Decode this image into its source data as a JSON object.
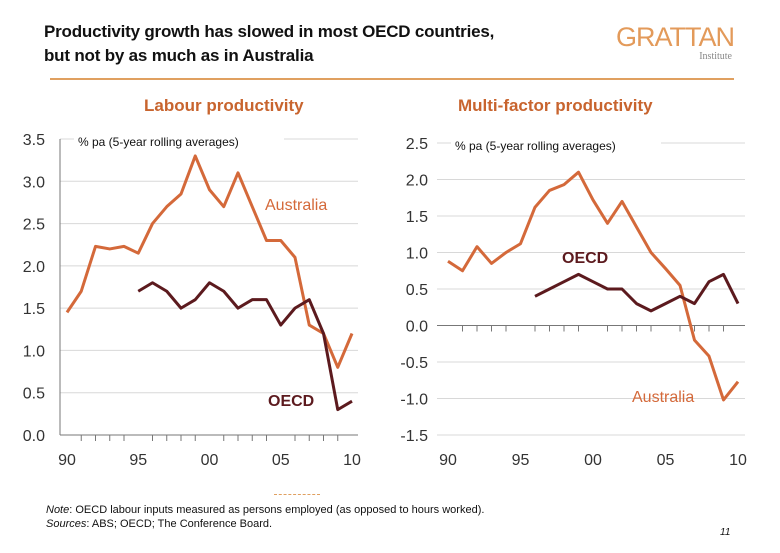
{
  "header": {
    "title_line1": "Productivity growth has slowed in most OECD countries,",
    "title_line2": "but not by as much as in Australia",
    "logo_text": "GRATTAN",
    "logo_subtext": "Institute"
  },
  "footer": {
    "note_label": "Note",
    "note_text": ": OECD labour inputs measured as persons employed (as opposed to hours worked).",
    "sources_label": "Sources",
    "sources_text": ": ABS; OECD; The Conference Board.",
    "page_number": "11"
  },
  "colors": {
    "australia": "#d4693a",
    "oecd": "#5c1a1e",
    "title": "#c8642e",
    "rule": "#e0a060"
  },
  "chart_data": [
    {
      "type": "line",
      "title": "Labour productivity",
      "ylabel": "% pa (5-year rolling averages)",
      "ylim": [
        0,
        3.5
      ],
      "yticks": [
        "0.0",
        "0.5",
        "1.0",
        "1.5",
        "2.0",
        "2.5",
        "3.0",
        "3.5"
      ],
      "xlim": [
        1990,
        2010
      ],
      "xticks": [
        "90",
        "95",
        "00",
        "05",
        "10"
      ],
      "grid": true,
      "series": [
        {
          "name": "Australia",
          "x": [
            1990,
            1991,
            1992,
            1993,
            1994,
            1995,
            1996,
            1997,
            1998,
            1999,
            2000,
            2001,
            2002,
            2003,
            2004,
            2005,
            2006,
            2007,
            2008,
            2009,
            2010
          ],
          "values": [
            1.45,
            1.7,
            2.23,
            2.2,
            2.23,
            2.15,
            2.5,
            2.7,
            2.85,
            3.3,
            2.9,
            2.7,
            3.1,
            2.7,
            2.3,
            2.3,
            2.1,
            1.3,
            1.2,
            0.8,
            1.2
          ]
        },
        {
          "name": "OECD",
          "x": [
            1995,
            1996,
            1997,
            1998,
            1999,
            2000,
            2001,
            2002,
            2003,
            2004,
            2005,
            2006,
            2007,
            2008,
            2009,
            2010
          ],
          "values": [
            1.7,
            1.8,
            1.7,
            1.5,
            1.6,
            1.8,
            1.7,
            1.5,
            1.6,
            1.6,
            1.3,
            1.5,
            1.6,
            1.2,
            0.3,
            0.4
          ]
        }
      ]
    },
    {
      "type": "line",
      "title": "Multi-factor productivity",
      "ylabel": "% pa (5-year rolling averages)",
      "ylim": [
        -1.5,
        2.5
      ],
      "yticks": [
        "-1.5",
        "-1.0",
        "-0.5",
        "0.0",
        "0.5",
        "1.0",
        "1.5",
        "2.0",
        "2.5"
      ],
      "xlim": [
        1990,
        2010
      ],
      "xticks": [
        "90",
        "95",
        "00",
        "05",
        "10"
      ],
      "grid": true,
      "series": [
        {
          "name": "Australia",
          "x": [
            1990,
            1991,
            1992,
            1993,
            1994,
            1995,
            1996,
            1997,
            1998,
            1999,
            2000,
            2001,
            2002,
            2003,
            2004,
            2005,
            2006,
            2007,
            2008,
            2009,
            2010
          ],
          "values": [
            0.88,
            0.75,
            1.08,
            0.85,
            1.0,
            1.12,
            1.62,
            1.85,
            1.93,
            2.1,
            1.72,
            1.4,
            1.7,
            1.35,
            1.0,
            0.78,
            0.55,
            -0.2,
            -0.42,
            -1.02,
            -0.77
          ]
        },
        {
          "name": "OECD",
          "x": [
            1996,
            1997,
            1998,
            1999,
            2000,
            2001,
            2002,
            2003,
            2004,
            2005,
            2006,
            2007,
            2008,
            2009,
            2010
          ],
          "values": [
            0.4,
            0.5,
            0.6,
            0.7,
            0.6,
            0.5,
            0.5,
            0.3,
            0.2,
            0.3,
            0.4,
            0.3,
            0.6,
            0.7,
            0.3
          ]
        }
      ]
    }
  ]
}
